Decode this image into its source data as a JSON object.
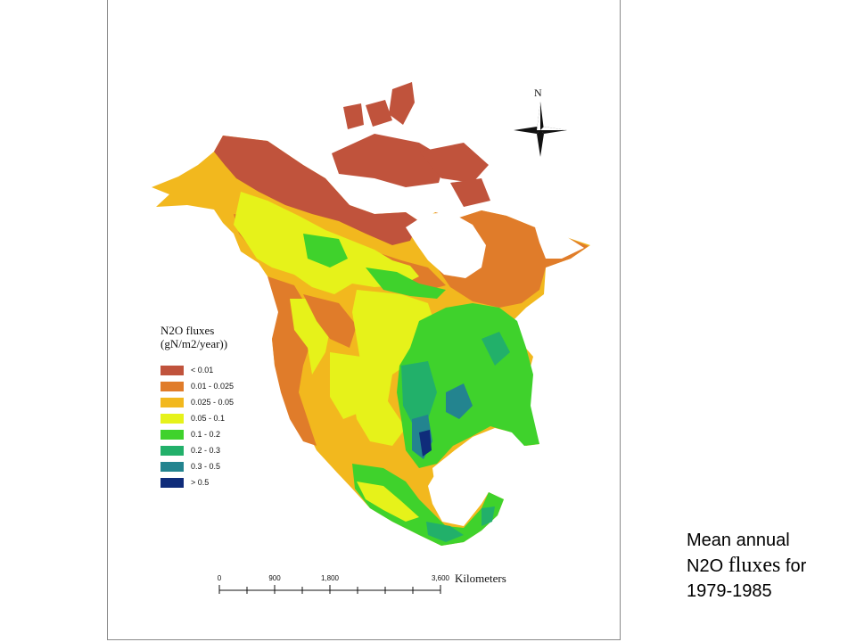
{
  "map": {
    "north_label": "N",
    "legend": {
      "title_line1": "N2O fluxes",
      "title_line2": "(gN/m2/year))",
      "items": [
        {
          "label": "< 0.01",
          "color": "#c0533c"
        },
        {
          "label": "0.01 - 0.025",
          "color": "#e07c2a"
        },
        {
          "label": "0.025 - 0.05",
          "color": "#f2b81e"
        },
        {
          "label": "0.05 - 0.1",
          "color": "#e6f21a"
        },
        {
          "label": "0.1 - 0.2",
          "color": "#3fd22c"
        },
        {
          "label": "0.2 - 0.3",
          "color": "#22b06a"
        },
        {
          "label": "0.3 - 0.5",
          "color": "#23848f"
        },
        {
          "label": "> 0.5",
          "color": "#0f2c7a"
        }
      ]
    },
    "scale_bar": {
      "ticks": [
        "0",
        "900",
        "1,800",
        "3,600"
      ],
      "unit": "Kilometers"
    }
  },
  "caption": {
    "line1": "Mean annual",
    "line2_prefix": "N2O",
    "line2_serif": "fluxes",
    "line2_suffix": "for",
    "line3": "1979-1985"
  }
}
